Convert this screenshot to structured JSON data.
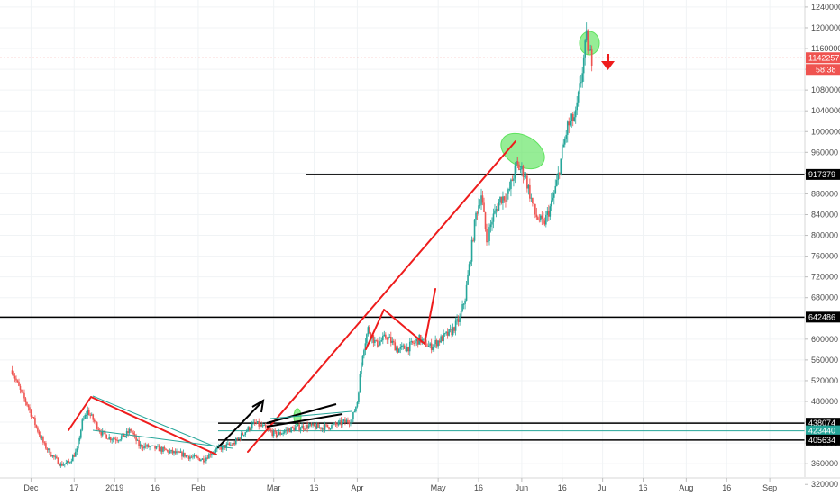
{
  "chart_data": {
    "type": "candlestick",
    "title": "",
    "xlabel": "",
    "ylabel": "",
    "ylim": [
      306000,
      1248000
    ],
    "y_ticks": [
      320000,
      360000,
      400000,
      440000,
      480000,
      520000,
      560000,
      600000,
      640000,
      680000,
      720000,
      760000,
      800000,
      840000,
      880000,
      920000,
      960000,
      1000000,
      1040000,
      1080000,
      1120000,
      1160000,
      1200000,
      1240000
    ],
    "x_axis_start": "2018-11-24",
    "x_axis_end": "2019-09-14",
    "x_ticks": [
      {
        "label": "Dec",
        "date": "2018-12-01"
      },
      {
        "label": "17",
        "date": "2018-12-17"
      },
      {
        "label": "2019",
        "date": "2019-01-01"
      },
      {
        "label": "16",
        "date": "2019-01-16"
      },
      {
        "label": "Feb",
        "date": "2019-02-01"
      },
      {
        "label": "Mar",
        "date": "2019-03-01"
      },
      {
        "label": "16",
        "date": "2019-03-16"
      },
      {
        "label": "Apr",
        "date": "2019-04-01"
      },
      {
        "label": "May",
        "date": "2019-05-01"
      },
      {
        "label": "16",
        "date": "2019-05-16"
      },
      {
        "label": "Jun",
        "date": "2019-06-01"
      },
      {
        "label": "16",
        "date": "2019-06-16"
      },
      {
        "label": "Jul",
        "date": "2019-07-01"
      },
      {
        "label": "16",
        "date": "2019-07-16"
      },
      {
        "label": "Aug",
        "date": "2019-08-01"
      },
      {
        "label": "16",
        "date": "2019-08-16"
      },
      {
        "label": "Sep",
        "date": "2019-09-01"
      }
    ],
    "price_path": [
      [
        "2018-11-24",
        540000
      ],
      [
        "2018-11-27",
        500000
      ],
      [
        "2018-11-30",
        470000
      ],
      [
        "2018-12-03",
        430000
      ],
      [
        "2018-12-06",
        395000
      ],
      [
        "2018-12-09",
        375000
      ],
      [
        "2018-12-12",
        358000
      ],
      [
        "2018-12-15",
        362000
      ],
      [
        "2018-12-18",
        385000
      ],
      [
        "2018-12-20",
        440000
      ],
      [
        "2018-12-22",
        462000
      ],
      [
        "2018-12-24",
        445000
      ],
      [
        "2018-12-27",
        420000
      ],
      [
        "2018-12-30",
        410000
      ],
      [
        "2019-01-02",
        408000
      ],
      [
        "2019-01-05",
        415000
      ],
      [
        "2019-01-07",
        425000
      ],
      [
        "2019-01-10",
        395000
      ],
      [
        "2019-01-14",
        392000
      ],
      [
        "2019-01-18",
        388000
      ],
      [
        "2019-01-22",
        382000
      ],
      [
        "2019-01-26",
        378000
      ],
      [
        "2019-01-30",
        372000
      ],
      [
        "2019-02-03",
        368000
      ],
      [
        "2019-02-06",
        382000
      ],
      [
        "2019-02-10",
        392000
      ],
      [
        "2019-02-14",
        398000
      ],
      [
        "2019-02-18",
        420000
      ],
      [
        "2019-02-22",
        438000
      ],
      [
        "2019-02-26",
        428000
      ],
      [
        "2019-03-02",
        415000
      ],
      [
        "2019-03-06",
        425000
      ],
      [
        "2019-03-10",
        430000
      ],
      [
        "2019-03-14",
        432000
      ],
      [
        "2019-03-18",
        430000
      ],
      [
        "2019-03-22",
        432000
      ],
      [
        "2019-03-26",
        438000
      ],
      [
        "2019-03-30",
        445000
      ],
      [
        "2019-04-01",
        480000
      ],
      [
        "2019-04-03",
        575000
      ],
      [
        "2019-04-05",
        620000
      ],
      [
        "2019-04-08",
        590000
      ],
      [
        "2019-04-12",
        605000
      ],
      [
        "2019-04-16",
        580000
      ],
      [
        "2019-04-20",
        585000
      ],
      [
        "2019-04-24",
        600000
      ],
      [
        "2019-04-28",
        585000
      ],
      [
        "2019-05-02",
        600000
      ],
      [
        "2019-05-06",
        615000
      ],
      [
        "2019-05-09",
        640000
      ],
      [
        "2019-05-11",
        680000
      ],
      [
        "2019-05-13",
        760000
      ],
      [
        "2019-05-15",
        840000
      ],
      [
        "2019-05-17",
        880000
      ],
      [
        "2019-05-19",
        790000
      ],
      [
        "2019-05-21",
        830000
      ],
      [
        "2019-05-24",
        870000
      ],
      [
        "2019-05-27",
        880000
      ],
      [
        "2019-05-30",
        935000
      ],
      [
        "2019-06-02",
        920000
      ],
      [
        "2019-06-04",
        880000
      ],
      [
        "2019-06-06",
        840000
      ],
      [
        "2019-06-09",
        820000
      ],
      [
        "2019-06-12",
        860000
      ],
      [
        "2019-06-14",
        900000
      ],
      [
        "2019-06-16",
        960000
      ],
      [
        "2019-06-18",
        1010000
      ],
      [
        "2019-06-21",
        1030000
      ],
      [
        "2019-06-23",
        1100000
      ],
      [
        "2019-06-25",
        1180000
      ],
      [
        "2019-06-26",
        1150000
      ],
      [
        "2019-06-27",
        1142257
      ]
    ],
    "horizontal_lines": [
      {
        "label": "917379",
        "value": 917379,
        "color": "#000000"
      },
      {
        "label": "642486",
        "value": 642486,
        "color": "#000000"
      },
      {
        "label": "438074",
        "value": 438074,
        "color": "#000000"
      },
      {
        "label": "423440",
        "value": 423440,
        "color": "#26a69a"
      },
      {
        "label": "405634",
        "value": 405634,
        "color": "#000000"
      }
    ],
    "price_line": {
      "label": "1142257",
      "value": 1142257,
      "color": "#ef5350"
    },
    "countdown": "58:38",
    "colors": {
      "up": "#26a69a",
      "down": "#ef5350",
      "annotation": "#ee1c1c",
      "highlight": "#5ee35e",
      "marker_line": "#000000"
    }
  }
}
